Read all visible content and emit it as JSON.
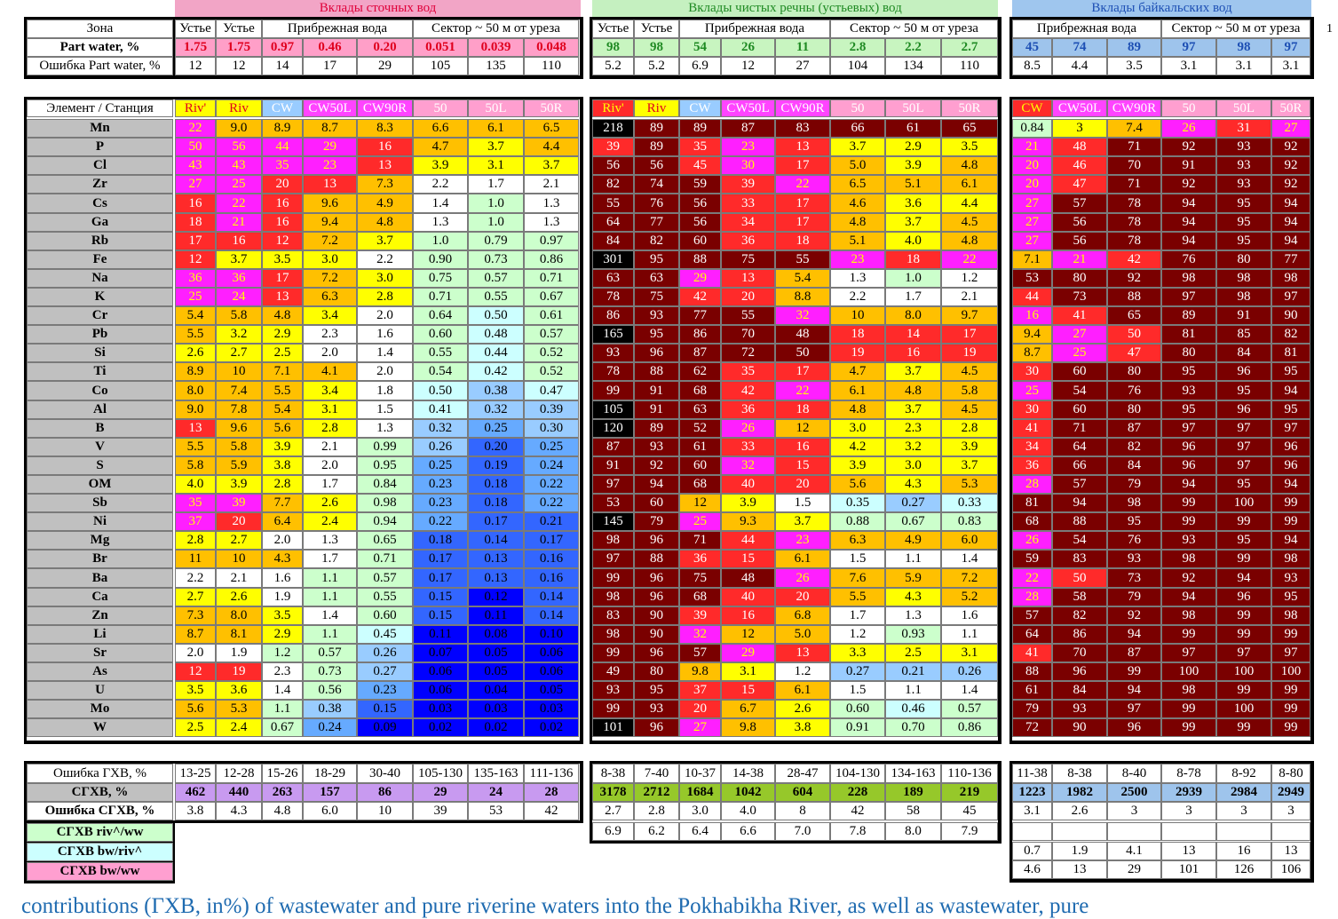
{
  "sections": {
    "wastewater_title": "Вклады сточных вод",
    "river_title": "Вклады чистых речны (устьевых) вод",
    "baikal_title": "Вклады байкальских вод"
  },
  "top_table": {
    "zone_label": "Зона",
    "part_water_label": "Part  water, %",
    "part_water_error_label": "Ошибка Part  water, %",
    "ww_zone_headers": [
      "Устье",
      "Устье",
      "Прибрежная вода",
      "Сектор ~ 50 м от уреза"
    ],
    "ww_part_water": [
      "1.75",
      "1.75",
      "0.97",
      "0.46",
      "0.20",
      "0.051",
      "0.039",
      "0.048"
    ],
    "ww_part_error": [
      "12",
      "12",
      "14",
      "17",
      "29",
      "105",
      "135",
      "110"
    ],
    "rv_zone_headers": [
      "Устье",
      "Устье",
      "Прибрежная вода",
      "Сектор ~ 50 м от уреза"
    ],
    "rv_part_water": [
      "98",
      "98",
      "54",
      "26",
      "11",
      "2.8",
      "2.2",
      "2.7"
    ],
    "rv_part_error": [
      "5.2",
      "5.2",
      "6.9",
      "12",
      "27",
      "104",
      "134",
      "110"
    ],
    "bw_zone_headers": [
      "Прибрежная вода",
      "Сектор ~ 50 м от уреза"
    ],
    "bw_part_water": [
      "45",
      "74",
      "89",
      "97",
      "98",
      "97"
    ],
    "bw_part_error": [
      "8.5",
      "4.4",
      "3.5",
      "3.1",
      "3.1",
      "3.1"
    ]
  },
  "main_table": {
    "element_station_label": "Элемент / Станция",
    "ww_stations": [
      "Riv'",
      "Riv",
      "CW",
      "CW50L",
      "CW90R",
      "50",
      "50L",
      "50R"
    ],
    "rv_stations": [
      "Riv'",
      "Riv",
      "CW",
      "CW50L",
      "CW90R",
      "50",
      "50L",
      "50R"
    ],
    "bw_stations": [
      "CW",
      "CW50L",
      "CW90R",
      "50",
      "50L",
      "50R"
    ],
    "elements": [
      "Mn",
      "P",
      "Cl",
      "Zr",
      "Cs",
      "Ga",
      "Rb",
      "Fe",
      "Na",
      "K",
      "Cr",
      "Pb",
      "Si",
      "Ti",
      "Co",
      "Al",
      "B",
      "V",
      "S",
      "OM",
      "Sb",
      "Ni",
      "Mg",
      "Br",
      "Ba",
      "Ca",
      "Zn",
      "Li",
      "Sr",
      "As",
      "U",
      "Mo",
      "W"
    ],
    "ww_values": [
      [
        "22",
        "9.0",
        "8.9",
        "8.7",
        "8.3",
        "6.6",
        "6.1",
        "6.5"
      ],
      [
        "50",
        "56",
        "44",
        "29",
        "16",
        "4.7",
        "3.7",
        "4.4"
      ],
      [
        "43",
        "43",
        "35",
        "23",
        "13",
        "3.9",
        "3.1",
        "3.7"
      ],
      [
        "27",
        "25",
        "20",
        "13",
        "7.3",
        "2.2",
        "1.7",
        "2.1"
      ],
      [
        "16",
        "22",
        "16",
        "9.6",
        "4.9",
        "1.4",
        "1.0",
        "1.3"
      ],
      [
        "18",
        "21",
        "16",
        "9.4",
        "4.8",
        "1.3",
        "1.0",
        "1.3"
      ],
      [
        "17",
        "16",
        "12",
        "7.2",
        "3.7",
        "1.0",
        "0.79",
        "0.97"
      ],
      [
        "12",
        "3.7",
        "3.5",
        "3.0",
        "2.2",
        "0.90",
        "0.73",
        "0.86"
      ],
      [
        "36",
        "36",
        "17",
        "7.2",
        "3.0",
        "0.75",
        "0.57",
        "0.71"
      ],
      [
        "25",
        "24",
        "13",
        "6.3",
        "2.8",
        "0.71",
        "0.55",
        "0.67"
      ],
      [
        "5.4",
        "5.8",
        "4.8",
        "3.4",
        "2.0",
        "0.64",
        "0.50",
        "0.61"
      ],
      [
        "5.5",
        "3.2",
        "2.9",
        "2.3",
        "1.6",
        "0.60",
        "0.48",
        "0.57"
      ],
      [
        "2.6",
        "2.7",
        "2.5",
        "2.0",
        "1.4",
        "0.55",
        "0.44",
        "0.52"
      ],
      [
        "8.9",
        "10",
        "7.1",
        "4.1",
        "2.0",
        "0.54",
        "0.42",
        "0.52"
      ],
      [
        "8.0",
        "7.4",
        "5.5",
        "3.4",
        "1.8",
        "0.50",
        "0.38",
        "0.47"
      ],
      [
        "9.0",
        "7.8",
        "5.4",
        "3.1",
        "1.5",
        "0.41",
        "0.32",
        "0.39"
      ],
      [
        "13",
        "9.6",
        "5.6",
        "2.8",
        "1.3",
        "0.32",
        "0.25",
        "0.30"
      ],
      [
        "5.5",
        "5.8",
        "3.9",
        "2.1",
        "0.99",
        "0.26",
        "0.20",
        "0.25"
      ],
      [
        "5.8",
        "5.9",
        "3.8",
        "2.0",
        "0.95",
        "0.25",
        "0.19",
        "0.24"
      ],
      [
        "4.0",
        "3.9",
        "2.8",
        "1.7",
        "0.84",
        "0.23",
        "0.18",
        "0.22"
      ],
      [
        "35",
        "39",
        "7.7",
        "2.6",
        "0.98",
        "0.23",
        "0.18",
        "0.22"
      ],
      [
        "37",
        "20",
        "6.4",
        "2.4",
        "0.94",
        "0.22",
        "0.17",
        "0.21"
      ],
      [
        "2.8",
        "2.7",
        "2.0",
        "1.3",
        "0.65",
        "0.18",
        "0.14",
        "0.17"
      ],
      [
        "11",
        "10",
        "4.3",
        "1.7",
        "0.71",
        "0.17",
        "0.13",
        "0.16"
      ],
      [
        "2.2",
        "2.1",
        "1.6",
        "1.1",
        "0.57",
        "0.17",
        "0.13",
        "0.16"
      ],
      [
        "2.7",
        "2.6",
        "1.9",
        "1.1",
        "0.55",
        "0.15",
        "0.12",
        "0.14"
      ],
      [
        "7.3",
        "8.0",
        "3.5",
        "1.4",
        "0.60",
        "0.15",
        "0.11",
        "0.14"
      ],
      [
        "8.7",
        "8.1",
        "2.9",
        "1.1",
        "0.45",
        "0.11",
        "0.08",
        "0.10"
      ],
      [
        "2.0",
        "1.9",
        "1.2",
        "0.57",
        "0.26",
        "0.07",
        "0.05",
        "0.06"
      ],
      [
        "12",
        "19",
        "2.3",
        "0.73",
        "0.27",
        "0.06",
        "0.05",
        "0.06"
      ],
      [
        "3.5",
        "3.6",
        "1.4",
        "0.56",
        "0.23",
        "0.06",
        "0.04",
        "0.05"
      ],
      [
        "5.6",
        "5.3",
        "1.1",
        "0.38",
        "0.15",
        "0.03",
        "0.03",
        "0.03"
      ],
      [
        "2.5",
        "2.4",
        "0.67",
        "0.24",
        "0.09",
        "0.02",
        "0.02",
        "0.02"
      ]
    ],
    "rv_values": [
      [
        "218",
        "89",
        "89",
        "87",
        "83",
        "66",
        "61",
        "65"
      ],
      [
        "39",
        "89",
        "35",
        "23",
        "13",
        "3.7",
        "2.9",
        "3.5"
      ],
      [
        "56",
        "56",
        "45",
        "30",
        "17",
        "5.0",
        "3.9",
        "4.8"
      ],
      [
        "82",
        "74",
        "59",
        "39",
        "22",
        "6.5",
        "5.1",
        "6.1"
      ],
      [
        "55",
        "76",
        "56",
        "33",
        "17",
        "4.6",
        "3.6",
        "4.4"
      ],
      [
        "64",
        "77",
        "56",
        "34",
        "17",
        "4.8",
        "3.7",
        "4.5"
      ],
      [
        "84",
        "82",
        "60",
        "36",
        "18",
        "5.1",
        "4.0",
        "4.8"
      ],
      [
        "301",
        "95",
        "88",
        "75",
        "55",
        "23",
        "18",
        "22"
      ],
      [
        "63",
        "63",
        "29",
        "13",
        "5.4",
        "1.3",
        "1.0",
        "1.2"
      ],
      [
        "78",
        "75",
        "42",
        "20",
        "8.8",
        "2.2",
        "1.7",
        "2.1"
      ],
      [
        "86",
        "93",
        "77",
        "55",
        "32",
        "10",
        "8.0",
        "9.7"
      ],
      [
        "165",
        "95",
        "86",
        "70",
        "48",
        "18",
        "14",
        "17"
      ],
      [
        "93",
        "96",
        "87",
        "72",
        "50",
        "19",
        "16",
        "19"
      ],
      [
        "78",
        "88",
        "62",
        "35",
        "17",
        "4.7",
        "3.7",
        "4.5"
      ],
      [
        "99",
        "91",
        "68",
        "42",
        "22",
        "6.1",
        "4.8",
        "5.8"
      ],
      [
        "105",
        "91",
        "63",
        "36",
        "18",
        "4.8",
        "3.7",
        "4.5"
      ],
      [
        "120",
        "89",
        "52",
        "26",
        "12",
        "3.0",
        "2.3",
        "2.8"
      ],
      [
        "87",
        "93",
        "61",
        "33",
        "16",
        "4.2",
        "3.2",
        "3.9"
      ],
      [
        "91",
        "92",
        "60",
        "32",
        "15",
        "3.9",
        "3.0",
        "3.7"
      ],
      [
        "97",
        "94",
        "68",
        "40",
        "20",
        "5.6",
        "4.3",
        "5.3"
      ],
      [
        "53",
        "60",
        "12",
        "3.9",
        "1.5",
        "0.35",
        "0.27",
        "0.33"
      ],
      [
        "145",
        "79",
        "25",
        "9.3",
        "3.7",
        "0.88",
        "0.67",
        "0.83"
      ],
      [
        "98",
        "96",
        "71",
        "44",
        "23",
        "6.3",
        "4.9",
        "6.0"
      ],
      [
        "97",
        "88",
        "36",
        "15",
        "6.1",
        "1.5",
        "1.1",
        "1.4"
      ],
      [
        "99",
        "96",
        "75",
        "48",
        "26",
        "7.6",
        "5.9",
        "7.2"
      ],
      [
        "98",
        "96",
        "68",
        "40",
        "20",
        "5.5",
        "4.3",
        "5.2"
      ],
      [
        "83",
        "90",
        "39",
        "16",
        "6.8",
        "1.7",
        "1.3",
        "1.6"
      ],
      [
        "98",
        "90",
        "32",
        "12",
        "5.0",
        "1.2",
        "0.93",
        "1.1"
      ],
      [
        "99",
        "96",
        "57",
        "29",
        "13",
        "3.3",
        "2.5",
        "3.1"
      ],
      [
        "49",
        "80",
        "9.8",
        "3.1",
        "1.2",
        "0.27",
        "0.21",
        "0.26"
      ],
      [
        "93",
        "95",
        "37",
        "15",
        "6.1",
        "1.5",
        "1.1",
        "1.4"
      ],
      [
        "99",
        "93",
        "20",
        "6.7",
        "2.6",
        "0.60",
        "0.46",
        "0.57"
      ],
      [
        "101",
        "96",
        "27",
        "9.8",
        "3.8",
        "0.91",
        "0.70",
        "0.86"
      ]
    ],
    "bw_values": [
      [
        "0.84",
        "3",
        "7.4",
        "26",
        "31",
        "27"
      ],
      [
        "21",
        "48",
        "71",
        "92",
        "93",
        "92"
      ],
      [
        "20",
        "46",
        "70",
        "91",
        "93",
        "92"
      ],
      [
        "20",
        "47",
        "71",
        "92",
        "93",
        "92"
      ],
      [
        "27",
        "57",
        "78",
        "94",
        "95",
        "94"
      ],
      [
        "27",
        "56",
        "78",
        "94",
        "95",
        "94"
      ],
      [
        "27",
        "56",
        "78",
        "94",
        "95",
        "94"
      ],
      [
        "7.1",
        "21",
        "42",
        "76",
        "80",
        "77"
      ],
      [
        "53",
        "80",
        "92",
        "98",
        "98",
        "98"
      ],
      [
        "44",
        "73",
        "88",
        "97",
        "98",
        "97"
      ],
      [
        "16",
        "41",
        "65",
        "89",
        "91",
        "90"
      ],
      [
        "9.4",
        "27",
        "50",
        "81",
        "85",
        "82"
      ],
      [
        "8.7",
        "25",
        "47",
        "80",
        "84",
        "81"
      ],
      [
        "30",
        "60",
        "80",
        "95",
        "96",
        "95"
      ],
      [
        "25",
        "54",
        "76",
        "93",
        "95",
        "94"
      ],
      [
        "30",
        "60",
        "80",
        "95",
        "96",
        "95"
      ],
      [
        "41",
        "71",
        "87",
        "97",
        "97",
        "97"
      ],
      [
        "34",
        "64",
        "82",
        "96",
        "97",
        "96"
      ],
      [
        "36",
        "66",
        "84",
        "96",
        "97",
        "96"
      ],
      [
        "28",
        "57",
        "79",
        "94",
        "95",
        "94"
      ],
      [
        "81",
        "94",
        "98",
        "99",
        "100",
        "99"
      ],
      [
        "68",
        "88",
        "95",
        "99",
        "99",
        "99"
      ],
      [
        "26",
        "54",
        "76",
        "93",
        "95",
        "94"
      ],
      [
        "59",
        "83",
        "93",
        "98",
        "99",
        "98"
      ],
      [
        "22",
        "50",
        "73",
        "92",
        "94",
        "93"
      ],
      [
        "28",
        "58",
        "79",
        "94",
        "96",
        "95"
      ],
      [
        "57",
        "82",
        "92",
        "98",
        "99",
        "98"
      ],
      [
        "64",
        "86",
        "94",
        "99",
        "99",
        "99"
      ],
      [
        "41",
        "70",
        "87",
        "97",
        "97",
        "97"
      ],
      [
        "88",
        "96",
        "99",
        "100",
        "100",
        "100"
      ],
      [
        "61",
        "84",
        "94",
        "98",
        "99",
        "99"
      ],
      [
        "79",
        "93",
        "97",
        "99",
        "100",
        "99"
      ],
      [
        "72",
        "90",
        "96",
        "99",
        "99",
        "99"
      ]
    ]
  },
  "bottom_table": {
    "ghv_error_label": "Ошибка ГХВ, %",
    "sghv_label": "СГХВ, %",
    "sghv_error_label": "Ошибка СГХВ, %",
    "ratio_riv_ww_label": "СГХВ  riv^/ww",
    "ratio_bw_riv_label": "СГХВ  bw/riv^",
    "ratio_bw_ww_label": "СГХВ  bw/ww",
    "ww_ghv_error": [
      "13-25",
      "12-28",
      "15-26",
      "18-29",
      "30-40",
      "105-130",
      "135-163",
      "111-136"
    ],
    "ww_sghv": [
      "462",
      "440",
      "263",
      "157",
      "86",
      "29",
      "24",
      "28"
    ],
    "ww_sghv_error": [
      "3.8",
      "4.3",
      "4.8",
      "6.0",
      "10",
      "39",
      "53",
      "42"
    ],
    "rv_ghv_error": [
      "8-38",
      "7-40",
      "10-37",
      "14-38",
      "28-47",
      "104-130",
      "134-163",
      "110-136"
    ],
    "rv_sghv": [
      "3178",
      "2712",
      "1684",
      "1042",
      "604",
      "228",
      "189",
      "219"
    ],
    "rv_sghv_error": [
      "2.7",
      "2.8",
      "3.0",
      "4.0",
      "8",
      "42",
      "58",
      "45"
    ],
    "rv_ratio_riv_ww": [
      "6.9",
      "6.2",
      "6.4",
      "6.6",
      "7.0",
      "7.8",
      "8.0",
      "7.9"
    ],
    "bw_ghv_error": [
      "11-38",
      "8-38",
      "8-40",
      "8-78",
      "8-92",
      "8-80"
    ],
    "bw_sghv": [
      "1223",
      "1982",
      "2500",
      "2939",
      "2984",
      "2949"
    ],
    "bw_sghv_error": [
      "3.1",
      "2.6",
      "3",
      "3",
      "3",
      "3"
    ],
    "bw_ratio_bw_riv": [
      "0.7",
      "1.9",
      "4.1",
      "13",
      "16",
      "13"
    ],
    "bw_ratio_bw_ww": [
      "4.6",
      "13",
      "29",
      "101",
      "126",
      "106"
    ]
  },
  "caption": "contributions (ГХВ, in%) of wastewater and pure riverine waters into the Pokhabikha River, as well as wastewater, pure",
  "edge_mark": "1",
  "colors": {
    "wastewater_header_bg": "#f2a5c6",
    "wastewater_header_text": "#e0003a",
    "river_header_bg": "#c5f0c0",
    "river_header_text": "#1f8a23",
    "baikal_header_bg": "#9fc6ee",
    "baikal_header_text": "#1d4fb4",
    "element_cell_bg": "#c0c0c0",
    "sghv_ww_bg": "#c89af0",
    "sghv_rv_bg": "#96c82a",
    "sghv_bw_bg": "#9ec4ec"
  }
}
